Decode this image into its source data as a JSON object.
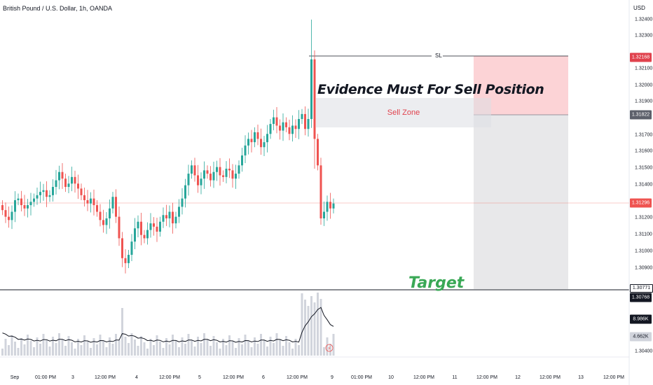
{
  "header": {
    "symbol": "British Pound / U.S. Dollar, 1h, OANDA",
    "currency": "USD"
  },
  "price_axis": {
    "ticks": [
      "1.32400",
      "1.32300",
      "1.32100",
      "1.32000",
      "1.31900",
      "1.31700",
      "1.31600",
      "1.31500",
      "1.31400",
      "1.31200",
      "1.31100",
      "1.31000",
      "1.30900",
      "1.30400"
    ],
    "badges": {
      "sl": "1.32168",
      "entry": "1.31822",
      "current": "1.31296",
      "upper_target": "1.30771",
      "target": "1.30768",
      "volume_ma": "8.986K",
      "volume": "4.662K"
    }
  },
  "time_axis": [
    "Sep",
    "01:00 PM",
    "3",
    "12:00 PM",
    "4",
    "12:00 PM",
    "5",
    "12:00 PM",
    "6",
    "12:00 PM",
    "9",
    "01:00 PM",
    "10",
    "12:00 PM",
    "11",
    "12:00 PM",
    "12",
    "12:00 PM",
    "13",
    "12:00 PM"
  ],
  "annotations": {
    "title": "Evidence Must For Sell Position",
    "sell_zone": "Sell Zone",
    "target": "Target",
    "sl": "SL"
  },
  "colors": {
    "up": "#26a69a",
    "down": "#ef5350",
    "target_text": "#3aa856",
    "sl_badge": "#e0424d",
    "current_badge": "#ef5350"
  },
  "chart_data": {
    "type": "candlestick",
    "symbol": "GBPUSD",
    "timeframe": "1h",
    "ylim": [
      1.3039,
      1.3245
    ],
    "levels": {
      "stop_loss": 1.32168,
      "entry": 1.31822,
      "current": 1.31296,
      "target": 1.30768
    },
    "closes": [
      1.3125,
      1.3121,
      1.3119,
      1.3124,
      1.3131,
      1.3132,
      1.3128,
      1.3126,
      1.3128,
      1.313,
      1.3132,
      1.3134,
      1.3136,
      1.3137,
      1.3133,
      1.3134,
      1.3139,
      1.3143,
      1.3148,
      1.3144,
      1.3139,
      1.3141,
      1.3145,
      1.3141,
      1.3138,
      1.3134,
      1.3131,
      1.3129,
      1.3132,
      1.3128,
      1.3124,
      1.3119,
      1.3116,
      1.312,
      1.3126,
      1.3133,
      1.3121,
      1.3108,
      1.3096,
      1.3093,
      1.3098,
      1.3106,
      1.3114,
      1.3118,
      1.311,
      1.3108,
      1.3113,
      1.3117,
      1.3115,
      1.3112,
      1.3118,
      1.3122,
      1.312,
      1.3124,
      1.3117,
      1.3121,
      1.3127,
      1.3132,
      1.314,
      1.3147,
      1.3152,
      1.3146,
      1.314,
      1.3144,
      1.3149,
      1.3147,
      1.3143,
      1.3148,
      1.3151,
      1.3146,
      1.3145,
      1.315,
      1.3149,
      1.3144,
      1.3147,
      1.3152,
      1.3158,
      1.3164,
      1.3168,
      1.3166,
      1.3172,
      1.3168,
      1.3163,
      1.3166,
      1.3171,
      1.3177,
      1.3181,
      1.3176,
      1.3173,
      1.3178,
      1.3175,
      1.3171,
      1.3176,
      1.3174,
      1.318,
      1.3183,
      1.3174,
      1.318,
      1.3216,
      1.3168,
      1.3152,
      1.312,
      1.3124,
      1.313,
      1.3126,
      1.3129
    ],
    "volume_ma": 8986,
    "last_volume": 4662
  }
}
